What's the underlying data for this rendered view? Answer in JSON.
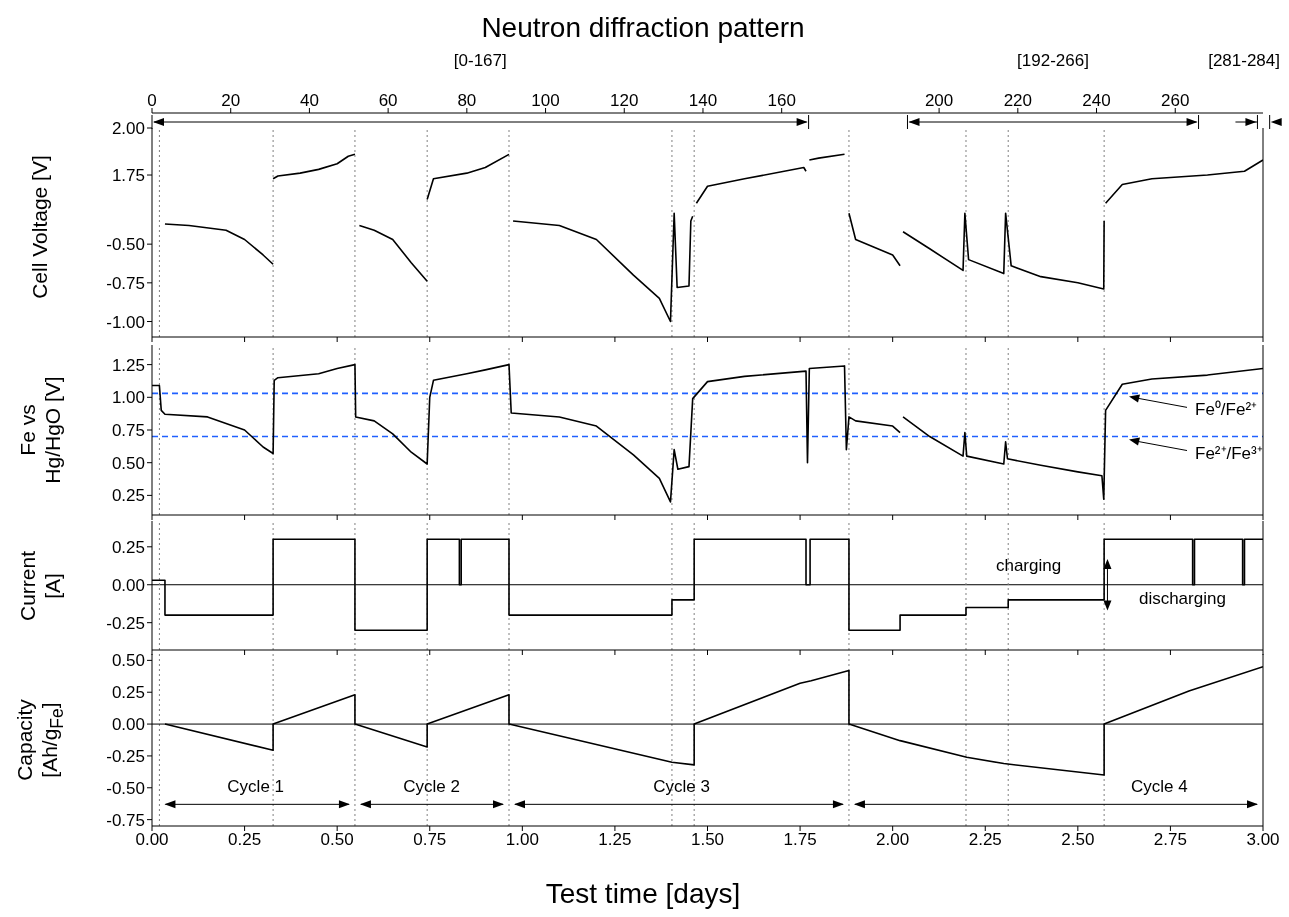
{
  "chart_data": [
    {
      "type": "line",
      "x2label": "Neutron diffraction pattern",
      "x2lim": [
        0,
        282.3
      ],
      "x2ticks": [
        0,
        20,
        40,
        60,
        80,
        100,
        120,
        140,
        160,
        200,
        220,
        240,
        260
      ],
      "annotations": [
        "[0-167]",
        "[192-266]",
        "[281-284]"
      ],
      "xlim": [
        0,
        3
      ],
      "ylim": [
        1.58,
        2.0
      ],
      "yticks": [
        {
          "value": 2,
          "label": "2.00"
        },
        {
          "value": 1.75,
          "label": "1.75"
        }
      ],
      "tick_labels": "y",
      "color": "#000000",
      "x": [
        0.327,
        0.34,
        0.4,
        0.45,
        0.5,
        0.53,
        0.548,
        0.55,
        0.743,
        0.76,
        0.85,
        0.9,
        0.964,
        0.97,
        1.47,
        1.5,
        1.6,
        1.76,
        1.766,
        1.77,
        1.775,
        1.8,
        1.87,
        1.875,
        2.575,
        2.62,
        2.7,
        2.85,
        2.95,
        3.0
      ],
      "values": [
        1.73,
        1.745,
        1.76,
        1.78,
        1.81,
        1.85,
        1.86,
        null,
        1.62,
        1.73,
        1.76,
        1.79,
        1.86,
        null,
        1.6,
        1.69,
        1.73,
        1.79,
        1.77,
        null,
        1.83,
        1.84,
        1.86,
        null,
        1.6,
        1.7,
        1.73,
        1.75,
        1.77,
        1.83
      ],
      "ref_lines": [
        {
          "axis": "x",
          "value": 0.02,
          "color": "#808080",
          "line_style": "dotted"
        },
        {
          "axis": "x",
          "value": 0.327,
          "color": "#808080",
          "line_style": "dotted"
        },
        {
          "axis": "x",
          "value": 0.548,
          "color": "#808080",
          "line_style": "dotted"
        },
        {
          "axis": "x",
          "value": 0.743,
          "color": "#808080",
          "line_style": "dotted"
        },
        {
          "axis": "x",
          "value": 0.964,
          "color": "#808080",
          "line_style": "dotted"
        },
        {
          "axis": "x",
          "value": 1.404,
          "color": "#808080",
          "line_style": "dotted"
        },
        {
          "axis": "x",
          "value": 1.464,
          "color": "#808080",
          "line_style": "dotted"
        },
        {
          "axis": "x",
          "value": 1.882,
          "color": "#808080",
          "line_style": "dotted"
        },
        {
          "axis": "x",
          "value": 2.198,
          "color": "#808080",
          "line_style": "dotted"
        },
        {
          "axis": "x",
          "value": 2.312,
          "color": "#808080",
          "line_style": "dotted"
        },
        {
          "axis": "x",
          "value": 2.571,
          "color": "#808080",
          "line_style": "dotted"
        }
      ]
    },
    {
      "type": "line",
      "ylabel": "Cell Voltage [V]",
      "xlim": [
        0,
        3
      ],
      "xticks": [
        0,
        0.25,
        0.5,
        0.75,
        1,
        1.25,
        1.5,
        1.75,
        2,
        2.25,
        2.5,
        2.75,
        3
      ],
      "ylim": [
        -1.1,
        -0.26
      ],
      "yticks": [
        {
          "value": -0.5,
          "label": "-0.50"
        },
        {
          "value": -0.75,
          "label": "-0.75"
        },
        {
          "value": -1,
          "label": "-1.00"
        }
      ],
      "tick_labels": "y",
      "color": "#000000",
      "x": [
        0.035,
        0.1,
        0.2,
        0.25,
        0.3,
        0.327,
        0.33,
        0.56,
        0.6,
        0.65,
        0.7,
        0.743,
        0.75,
        0.975,
        1.1,
        1.2,
        1.3,
        1.37,
        1.4,
        1.41,
        1.418,
        1.45,
        1.455,
        1.46,
        1.465,
        1.882,
        1.9,
        1.95,
        2.0,
        2.02,
        2.024,
        2.028,
        2.1,
        2.19,
        2.195,
        2.205,
        2.3,
        2.305,
        2.32,
        2.4,
        2.5,
        2.57,
        2.571
      ],
      "values": [
        -0.37,
        -0.38,
        -0.41,
        -0.47,
        -0.57,
        -0.63,
        null,
        -0.38,
        -0.41,
        -0.47,
        -0.62,
        -0.74,
        null,
        -0.35,
        -0.38,
        -0.47,
        -0.7,
        -0.85,
        -1.0,
        -0.3,
        -0.78,
        -0.77,
        -0.35,
        -0.32,
        null,
        -0.3,
        -0.47,
        -0.52,
        -0.57,
        -0.64,
        null,
        -0.42,
        -0.53,
        -0.67,
        -0.3,
        -0.6,
        -0.69,
        -0.3,
        -0.64,
        -0.71,
        -0.75,
        -0.79,
        -0.35
      ],
      "ref_lines": [
        {
          "axis": "x",
          "value": 0.02,
          "color": "#808080",
          "line_style": "dotted"
        },
        {
          "axis": "x",
          "value": 0.327,
          "color": "#808080",
          "line_style": "dotted"
        },
        {
          "axis": "x",
          "value": 0.548,
          "color": "#808080",
          "line_style": "dotted"
        },
        {
          "axis": "x",
          "value": 0.743,
          "color": "#808080",
          "line_style": "dotted"
        },
        {
          "axis": "x",
          "value": 0.964,
          "color": "#808080",
          "line_style": "dotted"
        },
        {
          "axis": "x",
          "value": 1.404,
          "color": "#808080",
          "line_style": "dotted"
        },
        {
          "axis": "x",
          "value": 1.464,
          "color": "#808080",
          "line_style": "dotted"
        },
        {
          "axis": "x",
          "value": 1.882,
          "color": "#808080",
          "line_style": "dotted"
        },
        {
          "axis": "x",
          "value": 2.198,
          "color": "#808080",
          "line_style": "dotted"
        },
        {
          "axis": "x",
          "value": 2.312,
          "color": "#808080",
          "line_style": "dotted"
        },
        {
          "axis": "x",
          "value": 2.571,
          "color": "#808080",
          "line_style": "dotted"
        }
      ]
    },
    {
      "type": "line",
      "ylabel": "Fe vs Hg/HgO [V]",
      "xlim": [
        0,
        3
      ],
      "xticks": [
        0,
        0.25,
        0.5,
        0.75,
        1,
        1.25,
        1.5,
        1.75,
        2,
        2.25,
        2.5,
        2.75,
        3
      ],
      "ylim": [
        0.1,
        1.4
      ],
      "yticks": [
        {
          "value": 0.25,
          "label": "0.25"
        },
        {
          "value": 0.5,
          "label": "0.50"
        },
        {
          "value": 0.75,
          "label": "0.75"
        },
        {
          "value": 1,
          "label": "1.00"
        },
        {
          "value": 1.25,
          "label": "1.25"
        }
      ],
      "tick_labels": "y",
      "color": "#000000",
      "x": [
        0,
        0.02,
        0.025,
        0.035,
        0.15,
        0.25,
        0.3,
        0.327,
        0.33,
        0.34,
        0.45,
        0.5,
        0.548,
        0.55,
        0.6,
        0.65,
        0.7,
        0.743,
        0.75,
        0.76,
        0.85,
        0.9,
        0.964,
        0.97,
        1.1,
        1.2,
        1.3,
        1.37,
        1.4,
        1.41,
        1.42,
        1.45,
        1.46,
        1.5,
        1.6,
        1.766,
        1.77,
        1.775,
        1.87,
        1.875,
        1.882,
        1.9,
        2.0,
        2.02,
        2.024,
        2.028,
        2.1,
        2.19,
        2.195,
        2.2,
        2.3,
        2.305,
        2.31,
        2.4,
        2.5,
        2.565,
        2.57,
        2.575,
        2.62,
        2.7,
        2.85,
        3.0
      ],
      "values": [
        1.09,
        1.09,
        0.9,
        0.87,
        0.85,
        0.75,
        0.62,
        0.57,
        1.13,
        1.15,
        1.18,
        1.22,
        1.25,
        0.85,
        0.82,
        0.72,
        0.58,
        0.49,
        1.0,
        1.13,
        1.18,
        1.21,
        1.25,
        0.88,
        0.85,
        0.78,
        0.56,
        0.38,
        0.2,
        0.6,
        0.45,
        0.47,
        0.99,
        1.12,
        1.16,
        1.2,
        0.5,
        1.22,
        1.24,
        0.6,
        0.85,
        0.82,
        0.78,
        0.73,
        null,
        0.85,
        0.7,
        0.55,
        0.73,
        0.55,
        0.49,
        0.66,
        0.53,
        0.48,
        0.43,
        0.4,
        0.22,
        0.9,
        1.1,
        1.14,
        1.17,
        1.22
      ],
      "ref_lines": [
        {
          "axis": "x",
          "value": 0.02,
          "color": "#808080",
          "line_style": "dotted"
        },
        {
          "axis": "x",
          "value": 0.327,
          "color": "#808080",
          "line_style": "dotted"
        },
        {
          "axis": "x",
          "value": 0.548,
          "color": "#808080",
          "line_style": "dotted"
        },
        {
          "axis": "x",
          "value": 0.743,
          "color": "#808080",
          "line_style": "dotted"
        },
        {
          "axis": "x",
          "value": 0.964,
          "color": "#808080",
          "line_style": "dotted"
        },
        {
          "axis": "x",
          "value": 1.404,
          "color": "#808080",
          "line_style": "dotted"
        },
        {
          "axis": "x",
          "value": 1.464,
          "color": "#808080",
          "line_style": "dotted"
        },
        {
          "axis": "x",
          "value": 1.882,
          "color": "#808080",
          "line_style": "dotted"
        },
        {
          "axis": "x",
          "value": 2.198,
          "color": "#808080",
          "line_style": "dotted"
        },
        {
          "axis": "x",
          "value": 2.312,
          "color": "#808080",
          "line_style": "dotted"
        },
        {
          "axis": "x",
          "value": 2.571,
          "color": "#808080",
          "line_style": "dotted"
        },
        {
          "axis": "y",
          "value": 1.03,
          "label": "Fe⁰/Fe²⁺",
          "color": "#2060ff",
          "line_style": "dashed"
        },
        {
          "axis": "y",
          "value": 0.7,
          "label": "Fe²⁺/Fe³⁺",
          "color": "#2060ff",
          "line_style": "dashed"
        }
      ]
    },
    {
      "type": "step",
      "ylabel": "Current [A]",
      "xlim": [
        0,
        3
      ],
      "xticks": [
        0,
        0.25,
        0.5,
        0.75,
        1,
        1.25,
        1.5,
        1.75,
        2,
        2.25,
        2.5,
        2.75,
        3
      ],
      "ylim": [
        -0.43,
        0.42
      ],
      "yticks": [
        {
          "value": -0.25,
          "label": "-0.25"
        },
        {
          "value": 0,
          "label": "0.00"
        },
        {
          "value": 0.25,
          "label": "0.25"
        }
      ],
      "tick_labels": "y",
      "color": "#000000",
      "x": [
        0,
        0.035,
        0.327,
        0.548,
        0.743,
        0.83,
        0.835,
        0.964,
        1.404,
        1.464,
        1.766,
        1.777,
        1.882,
        2.02,
        2.198,
        2.312,
        2.571,
        2.81,
        2.815,
        2.945,
        2.95,
        3.0
      ],
      "values": [
        0.03,
        -0.2,
        0.3,
        -0.3,
        0.3,
        0,
        0.3,
        -0.2,
        -0.1,
        0.3,
        0,
        0.3,
        -0.3,
        -0.2,
        -0.15,
        -0.1,
        0.3,
        0,
        0.3,
        0,
        0.3,
        0.3
      ],
      "annotations": [
        "charging",
        "discharging"
      ],
      "ref_lines": [
        {
          "axis": "y",
          "value": 0,
          "color": "#000000",
          "line_style": "solid"
        },
        {
          "axis": "x",
          "value": 0.02,
          "color": "#808080",
          "line_style": "dotted"
        },
        {
          "axis": "x",
          "value": 0.327,
          "color": "#808080",
          "line_style": "dotted"
        },
        {
          "axis": "x",
          "value": 0.548,
          "color": "#808080",
          "line_style": "dotted"
        },
        {
          "axis": "x",
          "value": 0.743,
          "color": "#808080",
          "line_style": "dotted"
        },
        {
          "axis": "x",
          "value": 0.964,
          "color": "#808080",
          "line_style": "dotted"
        },
        {
          "axis": "x",
          "value": 1.404,
          "color": "#808080",
          "line_style": "dotted"
        },
        {
          "axis": "x",
          "value": 1.464,
          "color": "#808080",
          "line_style": "dotted"
        },
        {
          "axis": "x",
          "value": 1.882,
          "color": "#808080",
          "line_style": "dotted"
        },
        {
          "axis": "x",
          "value": 2.198,
          "color": "#808080",
          "line_style": "dotted"
        },
        {
          "axis": "x",
          "value": 2.312,
          "color": "#808080",
          "line_style": "dotted"
        },
        {
          "axis": "x",
          "value": 2.571,
          "color": "#808080",
          "line_style": "dotted"
        }
      ]
    },
    {
      "type": "line",
      "ylabel": "Capacity [Ah/g$_{Fe}$]",
      "xlabel": "Test time [days]",
      "xlim": [
        0,
        3
      ],
      "xticks": [
        {
          "value": 0,
          "label": "0.00"
        },
        {
          "value": 0.25,
          "label": "0.25"
        },
        {
          "value": 0.5,
          "label": "0.50"
        },
        {
          "value": 0.75,
          "label": "0.75"
        },
        {
          "value": 1,
          "label": "1.00"
        },
        {
          "value": 1.25,
          "label": "1.25"
        },
        {
          "value": 1.5,
          "label": "1.50"
        },
        {
          "value": 1.75,
          "label": "1.75"
        },
        {
          "value": 2,
          "label": "2.00"
        },
        {
          "value": 2.25,
          "label": "2.25"
        },
        {
          "value": 2.5,
          "label": "2.50"
        },
        {
          "value": 2.75,
          "label": "2.75"
        },
        {
          "value": 3,
          "label": "3.00"
        }
      ],
      "ylim": [
        -0.8,
        0.55
      ],
      "yticks": [
        {
          "value": -0.75,
          "label": "-0.75"
        },
        {
          "value": -0.5,
          "label": "-0.50"
        },
        {
          "value": -0.25,
          "label": "-0.25"
        },
        {
          "value": 0,
          "label": "0.00"
        },
        {
          "value": 0.25,
          "label": "0.25"
        },
        {
          "value": 0.5,
          "label": "0.50"
        }
      ],
      "color": "#000000",
      "x": [
        0.035,
        0.327,
        0.327,
        0.548,
        0.548,
        0.743,
        0.743,
        0.964,
        0.964,
        1.404,
        1.464,
        1.464,
        1.75,
        1.78,
        1.882,
        1.882,
        2.02,
        2.2,
        2.3,
        2.571,
        2.571,
        2.8,
        3.0
      ],
      "values": [
        0,
        -0.205,
        0,
        0.23,
        0,
        -0.18,
        0,
        0.23,
        0,
        -0.3,
        -0.32,
        0,
        0.32,
        0.34,
        0.42,
        0,
        -0.13,
        -0.26,
        -0.31,
        -0.4,
        0,
        0.26,
        0.45
      ],
      "annotations": [
        "Cycle 1",
        "Cycle 2",
        "Cycle 3",
        "Cycle 4"
      ],
      "ref_lines": [
        {
          "axis": "x",
          "value": 0.02,
          "color": "#808080",
          "line_style": "dotted"
        },
        {
          "axis": "x",
          "value": 0.327,
          "color": "#808080",
          "line_style": "dotted"
        },
        {
          "axis": "x",
          "value": 0.548,
          "color": "#808080",
          "line_style": "dotted"
        },
        {
          "axis": "x",
          "value": 0.743,
          "color": "#808080",
          "line_style": "dotted"
        },
        {
          "axis": "x",
          "value": 0.964,
          "color": "#808080",
          "line_style": "dotted"
        },
        {
          "axis": "x",
          "value": 1.404,
          "color": "#808080",
          "line_style": "dotted"
        },
        {
          "axis": "x",
          "value": 1.464,
          "color": "#808080",
          "line_style": "dotted"
        },
        {
          "axis": "x",
          "value": 1.882,
          "color": "#808080",
          "line_style": "dotted"
        },
        {
          "axis": "x",
          "value": 2.198,
          "color": "#808080",
          "line_style": "dotted"
        },
        {
          "axis": "x",
          "value": 2.312,
          "color": "#808080",
          "line_style": "dotted"
        },
        {
          "axis": "x",
          "value": 2.571,
          "color": "#808080",
          "line_style": "dotted"
        },
        {
          "axis": "y",
          "value": 0,
          "color": "#000000",
          "line_style": "solid"
        }
      ]
    }
  ]
}
